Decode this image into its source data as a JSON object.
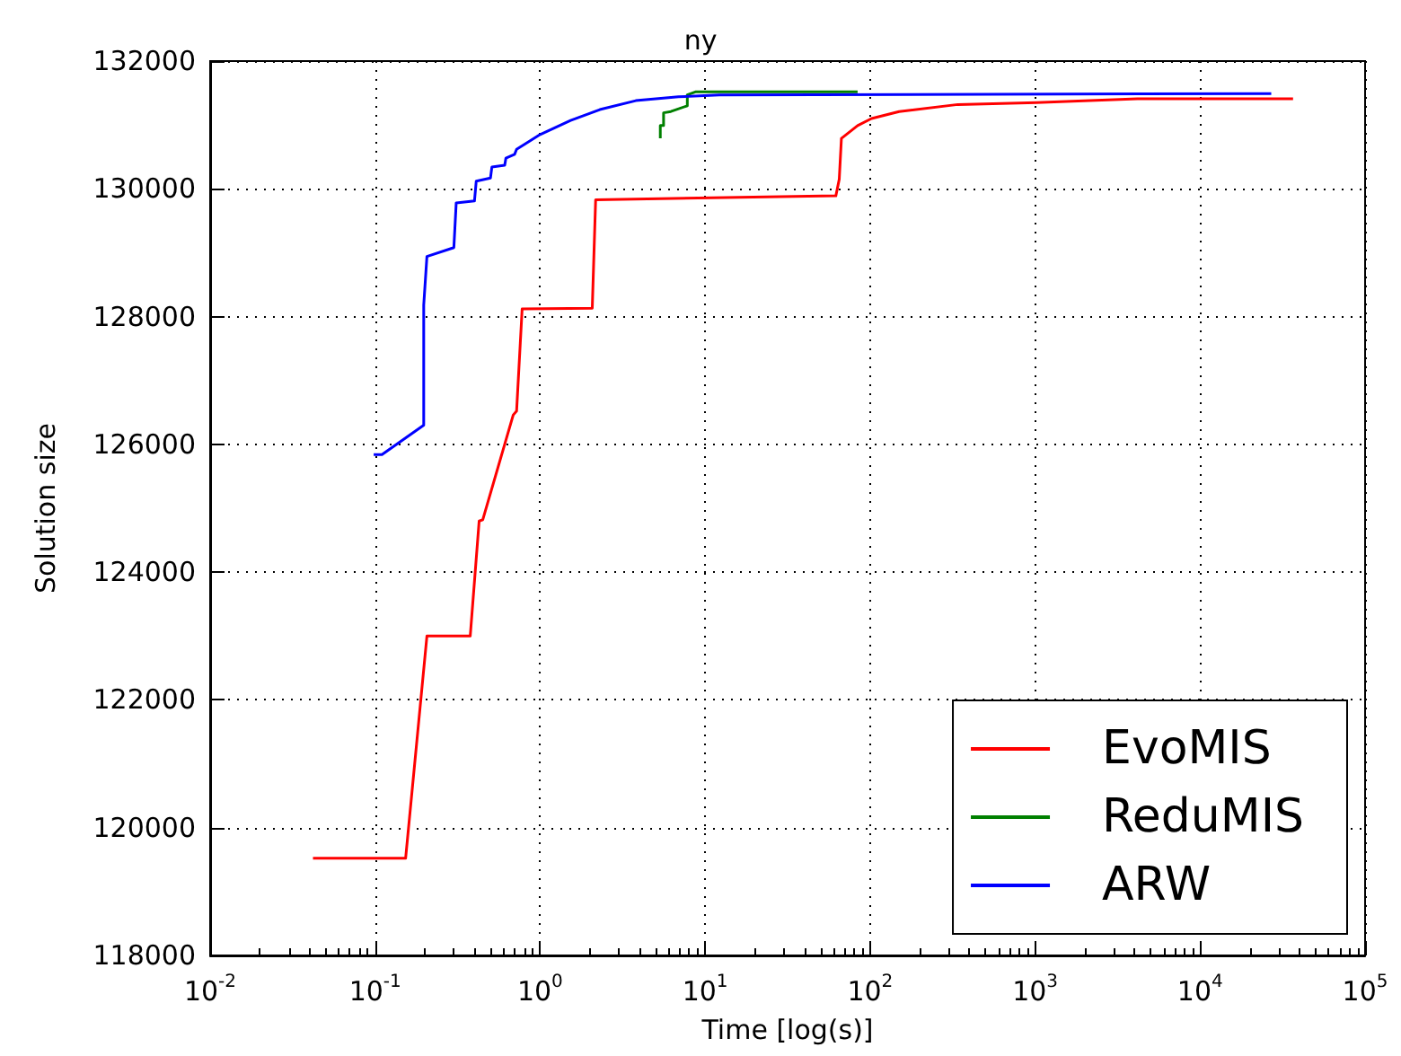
{
  "chart_data": {
    "type": "line",
    "title": "ny",
    "xlabel": "Time [log(s)]",
    "ylabel": "Solution size",
    "log": "x",
    "xlim": [
      0.01,
      100000
    ],
    "xticks": [
      {
        "value": 0.01,
        "label": "10$^{-2}$"
      },
      {
        "value": 0.1,
        "label": "10$^{-1}$"
      },
      {
        "value": 1,
        "label": "10$^{0}$"
      },
      {
        "value": 10,
        "label": "10$^{1}$"
      },
      {
        "value": 100,
        "label": "10$^{2}$"
      },
      {
        "value": 1000,
        "label": "10$^{3}$"
      },
      {
        "value": 10000,
        "label": "10$^{4}$"
      },
      {
        "value": 100000,
        "label": "10$^{5}$"
      }
    ],
    "ylim": [
      118000,
      132000
    ],
    "yticks": [
      118000,
      120000,
      122000,
      124000,
      126000,
      128000,
      130000,
      132000
    ],
    "grid": true,
    "legend": "bottom right",
    "line_style": "solid",
    "marker": "none",
    "series": [
      {
        "name": "EvoMIS",
        "color": "#ff0000",
        "x": [
          0.042,
          0.153,
          0.206,
          0.377,
          0.427,
          0.449,
          0.687,
          0.72,
          0.778,
          2.07,
          2.17,
          62,
          65,
          67,
          84,
          102,
          150,
          340,
          1020,
          4170,
          36600
        ],
        "values": [
          119520,
          119520,
          123000,
          123000,
          124800,
          124820,
          126460,
          126520,
          128120,
          128130,
          129830,
          129890,
          130150,
          130790,
          130990,
          131100,
          131210,
          131320,
          131350,
          131410,
          131410
        ]
      },
      {
        "name": "ReduMIS",
        "color": "#008000",
        "x": [
          5.35,
          5.35,
          5.6,
          5.6,
          6.2,
          7.8,
          7.8,
          8.8,
          84
        ],
        "values": [
          130790,
          130990,
          130990,
          131190,
          131210,
          131300,
          131470,
          131520,
          131520
        ]
      },
      {
        "name": "ARW",
        "color": "#0000ff",
        "x": [
          0.098,
          0.11,
          0.197,
          0.197,
          0.206,
          0.3,
          0.31,
          0.4,
          0.41,
          0.5,
          0.51,
          0.61,
          0.62,
          0.7,
          0.72,
          0.82,
          1.0,
          1.53,
          2.3,
          3.8,
          6.9,
          12.2,
          27000
        ],
        "values": [
          125840,
          125840,
          126300,
          128180,
          128940,
          129080,
          129780,
          129810,
          130120,
          130170,
          130340,
          130370,
          130480,
          130540,
          130620,
          130710,
          130850,
          131070,
          131240,
          131380,
          131440,
          131470,
          131490
        ]
      }
    ]
  }
}
